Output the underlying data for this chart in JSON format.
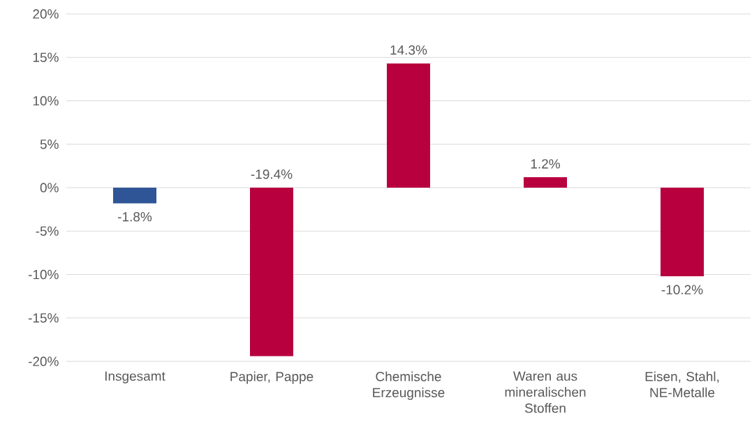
{
  "chart_data": {
    "type": "bar",
    "categories": [
      "Insgesamt",
      "Papier, Pappe",
      "Chemische Erzeugnisse",
      "Waren aus mineralischen Stoffen",
      "Eisen, Stahl, NE-Metalle"
    ],
    "values": [
      -1.8,
      -19.4,
      14.3,
      1.2,
      -10.2
    ],
    "colors": [
      "#2f5597",
      "#b8003f",
      "#b8003f",
      "#b8003f",
      "#b8003f"
    ],
    "value_labels": [
      "-1.8%",
      "-19.4%",
      "14.3%",
      "1.2%",
      "-10.2%"
    ],
    "ylim": [
      -20,
      20
    ],
    "yticks": [
      {
        "value": -20,
        "label": "-20%"
      },
      {
        "value": -15,
        "label": "-15%"
      },
      {
        "value": -10,
        "label": "-10%"
      },
      {
        "value": -5,
        "label": "-5%"
      },
      {
        "value": 0,
        "label": "0%"
      },
      {
        "value": 5,
        "label": "5%"
      },
      {
        "value": 10,
        "label": "10%"
      },
      {
        "value": 15,
        "label": "15%"
      },
      {
        "value": 20,
        "label": "20%"
      }
    ],
    "grid": "y"
  }
}
